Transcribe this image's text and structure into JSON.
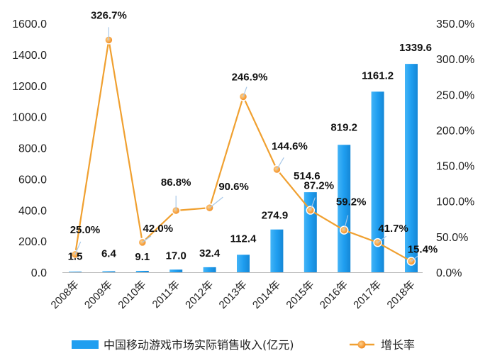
{
  "chart_data": {
    "type": "bar",
    "categories": [
      "2008年",
      "2009年",
      "2010年",
      "2011年",
      "2012年",
      "2013年",
      "2014年",
      "2015年",
      "2016年",
      "2017年",
      "2018年"
    ],
    "series": [
      {
        "name": "中国移动游戏市场实际销售收入(亿元)",
        "type": "bar",
        "axis": "left",
        "values": [
          1.5,
          6.4,
          9.1,
          17.0,
          32.4,
          112.4,
          274.9,
          514.6,
          819.2,
          1161.2,
          1339.6
        ],
        "labels": [
          "1.5",
          "6.4",
          "9.1",
          "17.0",
          "32.4",
          "112.4",
          "274.9",
          "514.6",
          "819.2",
          "1161.2",
          "1339.6"
        ]
      },
      {
        "name": "增长率",
        "type": "line",
        "axis": "right",
        "values": [
          25.0,
          326.7,
          42.0,
          86.8,
          90.6,
          246.9,
          144.6,
          87.2,
          59.2,
          41.7,
          15.4
        ],
        "labels": [
          "25.0%",
          "326.7%",
          "42.0%",
          "86.8%",
          "90.6%",
          "246.9%",
          "144.6%",
          "87.2%",
          "59.2%",
          "41.7%",
          "15.4%"
        ]
      }
    ],
    "y_left": {
      "range": [
        0,
        1600
      ],
      "ticks": [
        "0.0",
        "200.0",
        "400.0",
        "600.0",
        "800.0",
        "1000.0",
        "1200.0",
        "1400.0",
        "1600.0"
      ]
    },
    "y_right": {
      "range": [
        0,
        350
      ],
      "ticks": [
        "0.0%",
        "50.0%",
        "100.0%",
        "150.0%",
        "200.0%",
        "250.0%",
        "300.0%",
        "350.0%"
      ]
    },
    "grid": false,
    "legend_position": "bottom",
    "colors": {
      "bar": "#1f9ef0",
      "line": "#f0a030",
      "marker": "#f08a1e",
      "leader": "#a8c8e8"
    }
  }
}
